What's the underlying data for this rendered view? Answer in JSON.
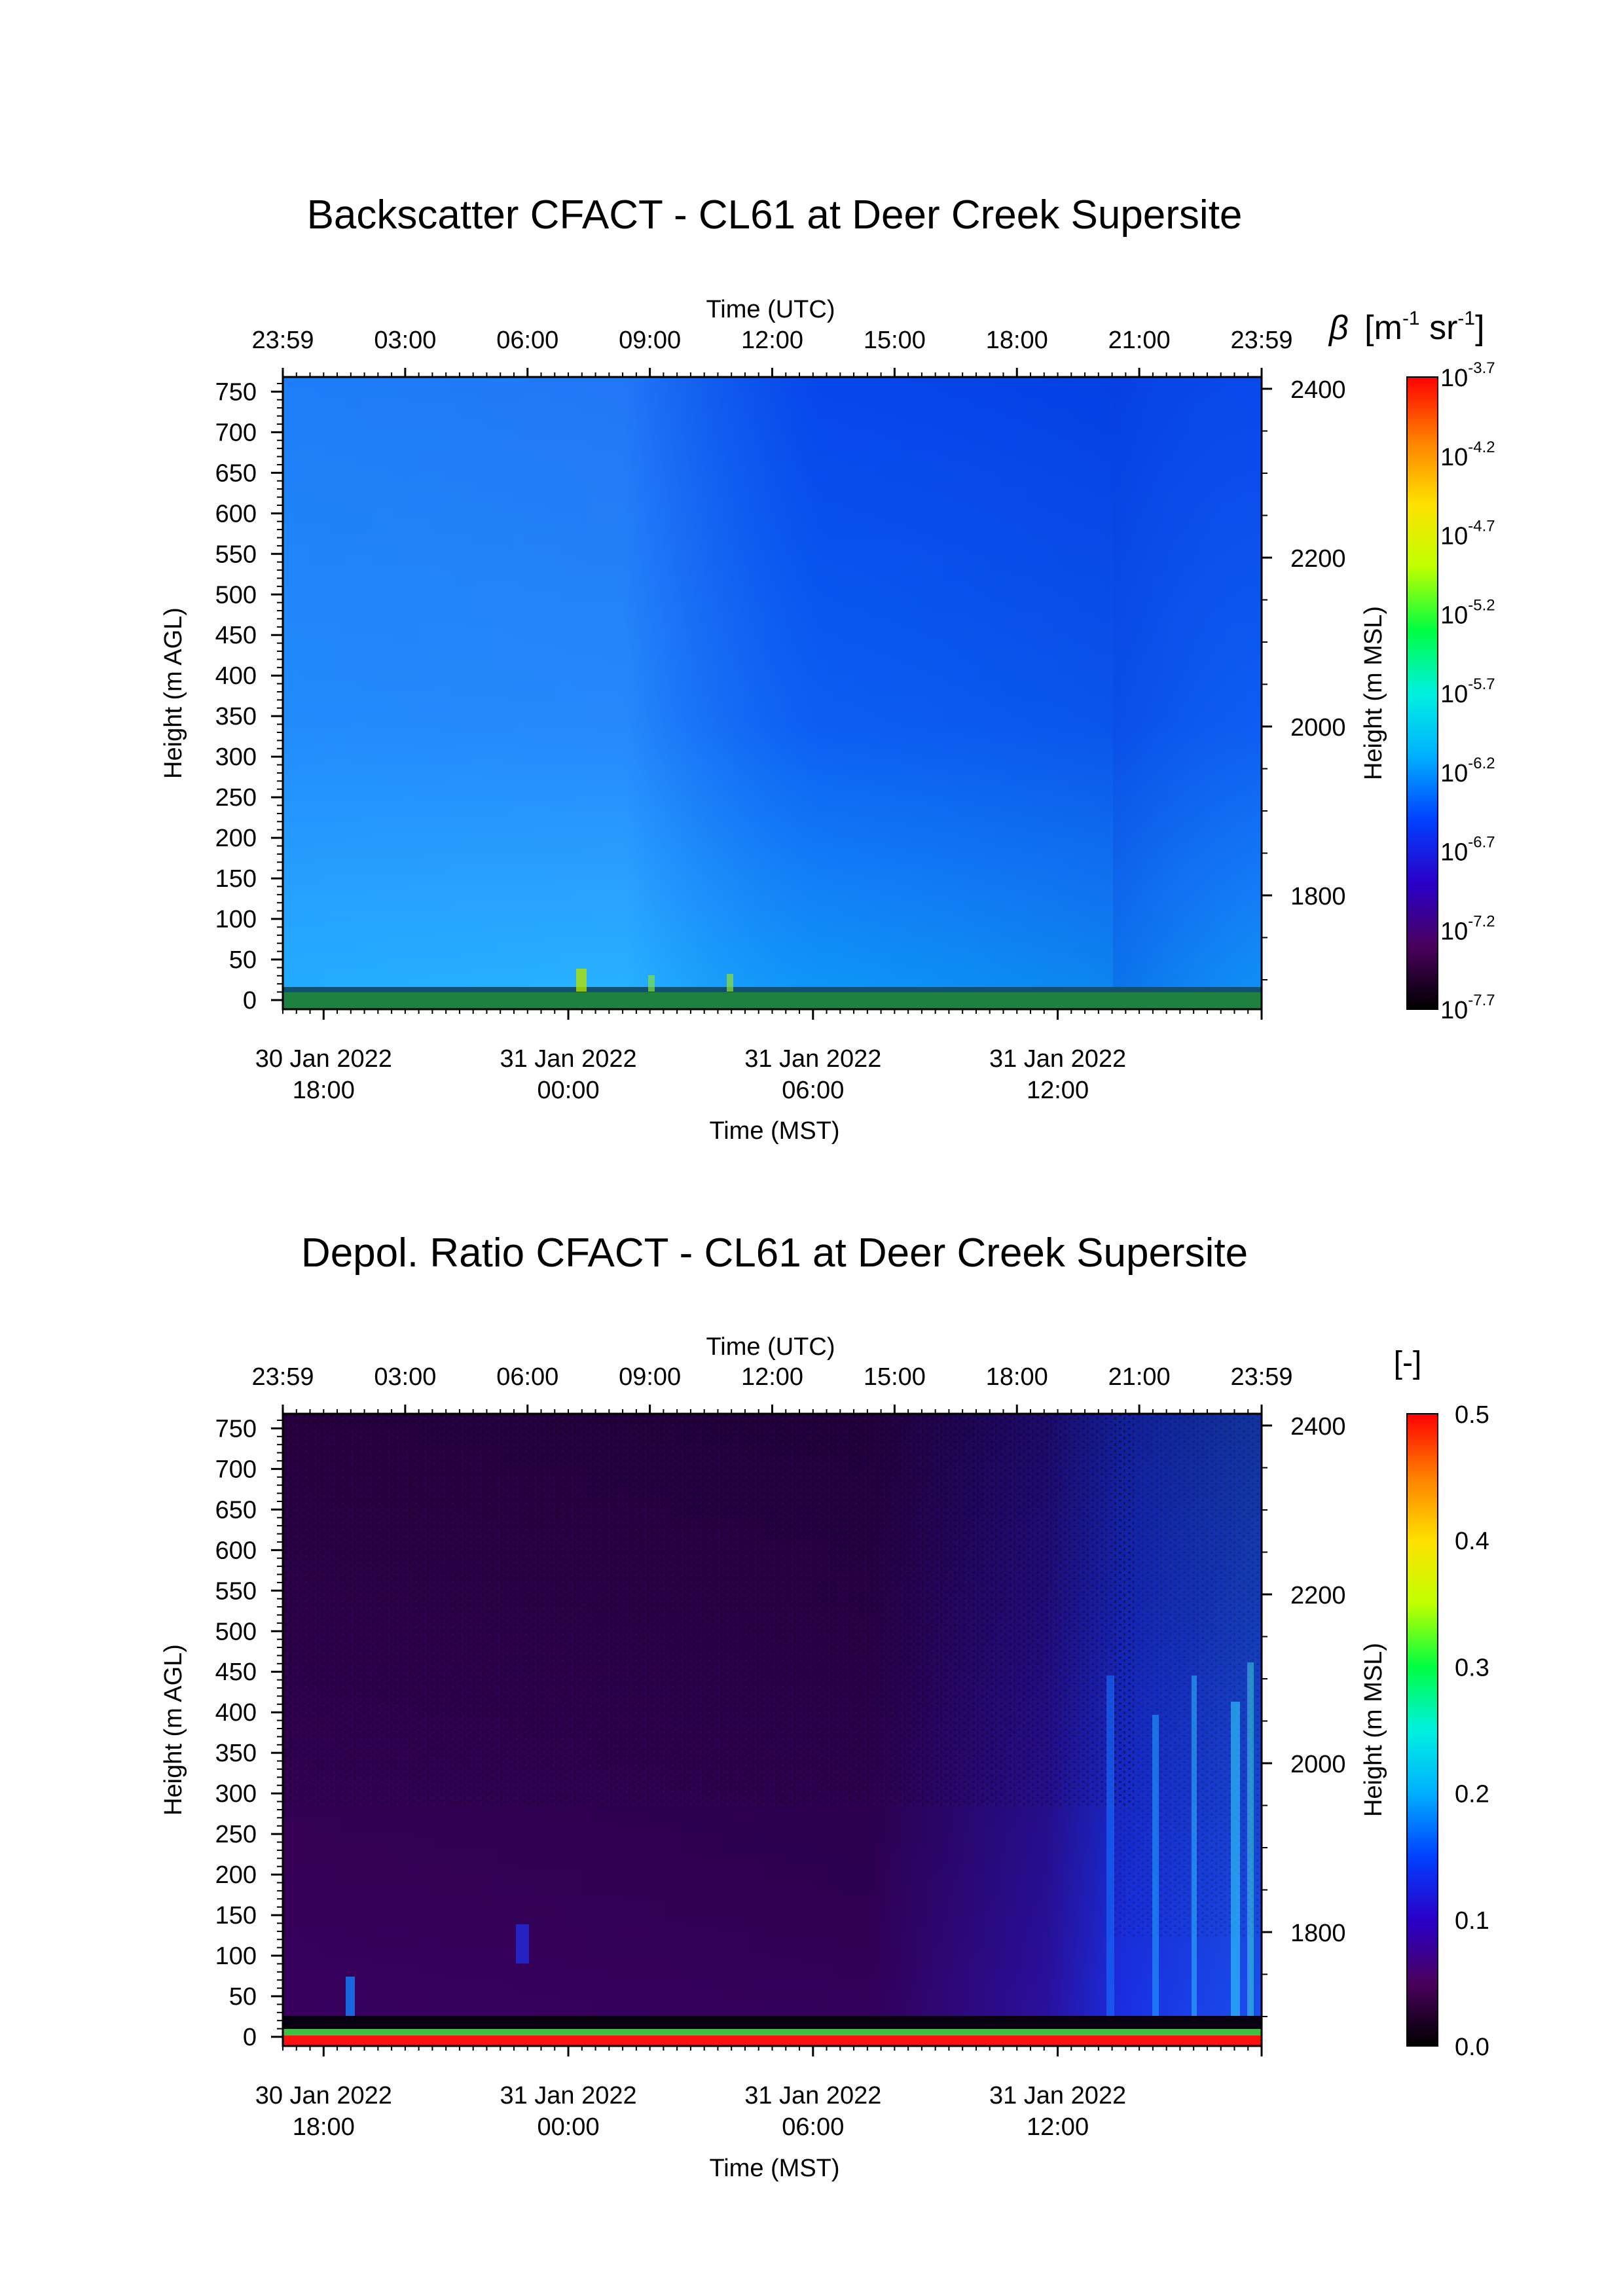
{
  "chart_data": [
    {
      "type": "heatmap",
      "title": "Backscatter CFACT - CL61 at Deer Creek Supersite",
      "top_axis": {
        "label": "Time (UTC)",
        "ticks": [
          "23:59",
          "03:00",
          "06:00",
          "09:00",
          "12:00",
          "15:00",
          "18:00",
          "21:00",
          "23:59"
        ]
      },
      "bottom_axis": {
        "label": "Time (MST)",
        "ticks": [
          {
            "date": "30 Jan 2022",
            "time": "18:00"
          },
          {
            "date": "31 Jan 2022",
            "time": "00:00"
          },
          {
            "date": "31 Jan 2022",
            "time": "06:00"
          },
          {
            "date": "31 Jan 2022",
            "time": "12:00"
          }
        ]
      },
      "left_axis": {
        "label": "Height (m AGL)",
        "ticks": [
          "750",
          "700",
          "650",
          "600",
          "550",
          "500",
          "450",
          "400",
          "350",
          "300",
          "250",
          "200",
          "150",
          "100",
          "50",
          "0"
        ],
        "range": [
          0,
          760
        ]
      },
      "right_axis": {
        "label": "Height (m MSL)",
        "ticks": [
          "2400",
          "2200",
          "2000",
          "1800"
        ]
      },
      "colorbar": {
        "label_symbol": "β",
        "label_text": "[m",
        "label_exp1": "-1",
        "label_mid": " sr",
        "label_exp2": "-1",
        "label_end": "]",
        "scale": "log",
        "range": [
          -7.7,
          -3.7
        ],
        "tick_base": "10",
        "tick_exponents": [
          "-3.7",
          "-4.2",
          "-4.7",
          "-5.2",
          "-5.7",
          "-6.2",
          "-6.7",
          "-7.2",
          "-7.7"
        ],
        "colormap": [
          "#000000",
          "#4a005e",
          "#2a00c8",
          "#0040ff",
          "#00c0ff",
          "#00e0d0",
          "#00ff40",
          "#c0ff00",
          "#ffe000",
          "#ff8000",
          "#ff0000"
        ]
      }
    },
    {
      "type": "heatmap",
      "title": "Depol. Ratio CFACT - CL61 at Deer Creek Supersite",
      "top_axis": {
        "label": "Time (UTC)",
        "ticks": [
          "23:59",
          "03:00",
          "06:00",
          "09:00",
          "12:00",
          "15:00",
          "18:00",
          "21:00",
          "23:59"
        ]
      },
      "bottom_axis": {
        "label": "Time (MST)",
        "ticks": [
          {
            "date": "30 Jan 2022",
            "time": "18:00"
          },
          {
            "date": "31 Jan 2022",
            "time": "00:00"
          },
          {
            "date": "31 Jan 2022",
            "time": "06:00"
          },
          {
            "date": "31 Jan 2022",
            "time": "12:00"
          }
        ]
      },
      "left_axis": {
        "label": "Height (m AGL)",
        "ticks": [
          "750",
          "700",
          "650",
          "600",
          "550",
          "500",
          "450",
          "400",
          "350",
          "300",
          "250",
          "200",
          "150",
          "100",
          "50",
          "0"
        ],
        "range": [
          0,
          760
        ]
      },
      "right_axis": {
        "label": "Height (m MSL)",
        "ticks": [
          "2400",
          "2200",
          "2000",
          "1800"
        ]
      },
      "colorbar": {
        "label": "[-]",
        "scale": "linear",
        "range": [
          0.0,
          0.5
        ],
        "ticks": [
          "0.5",
          "0.4",
          "0.3",
          "0.2",
          "0.1",
          "0.0"
        ],
        "colormap": [
          "#000000",
          "#4a005e",
          "#2a00c8",
          "#0040ff",
          "#00c0ff",
          "#00e0d0",
          "#00ff40",
          "#c0ff00",
          "#ffe000",
          "#ff8000",
          "#ff0000"
        ]
      }
    }
  ]
}
